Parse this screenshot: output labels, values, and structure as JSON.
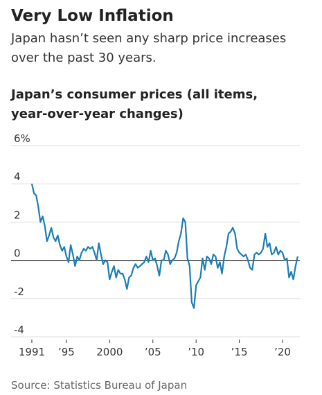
{
  "chart_data": {
    "type": "line",
    "title": "Very Low Inflation",
    "subtitle": "Japan hasn’t seen any sharp price increases over the past 30 years.",
    "chart_title": "Japan’s consumer prices (all items, year-over-year changes)",
    "source": "Source: Statistics Bureau of Japan",
    "color": "#1b7db5",
    "grid": true,
    "xlim": [
      1988.6,
      2022.0
    ],
    "xticks": [
      1991,
      {
        "value": 1995,
        "label": "’95"
      },
      2000,
      {
        "value": 2005,
        "label": "’05"
      },
      {
        "value": 2010,
        "label": "’10"
      },
      {
        "value": 2015,
        "label": "’15"
      },
      {
        "value": 2020,
        "label": "’20"
      }
    ],
    "ylim": [
      -4,
      6
    ],
    "yticks": [
      -4,
      -2,
      0,
      2,
      4,
      {
        "value": 6,
        "label": "6%"
      }
    ],
    "x": [
      1991.0,
      1991.25,
      1991.5,
      1991.75,
      1992.0,
      1992.25,
      1992.5,
      1992.75,
      1993.0,
      1993.25,
      1993.5,
      1993.75,
      1994.0,
      1994.25,
      1994.5,
      1994.75,
      1995.0,
      1995.25,
      1995.5,
      1995.75,
      1996.0,
      1996.25,
      1996.5,
      1996.75,
      1997.0,
      1997.25,
      1997.5,
      1997.75,
      1998.0,
      1998.25,
      1998.5,
      1998.75,
      1999.0,
      1999.25,
      1999.5,
      1999.75,
      2000.0,
      2000.25,
      2000.5,
      2000.75,
      2001.0,
      2001.25,
      2001.5,
      2001.75,
      2002.0,
      2002.25,
      2002.5,
      2002.75,
      2003.0,
      2003.25,
      2003.5,
      2003.75,
      2004.0,
      2004.25,
      2004.5,
      2004.75,
      2005.0,
      2005.25,
      2005.5,
      2005.75,
      2006.0,
      2006.25,
      2006.5,
      2006.75,
      2007.0,
      2007.25,
      2007.5,
      2007.75,
      2008.0,
      2008.25,
      2008.5,
      2008.75,
      2009.0,
      2009.25,
      2009.5,
      2009.75,
      2010.0,
      2010.25,
      2010.5,
      2010.75,
      2011.0,
      2011.25,
      2011.5,
      2011.75,
      2012.0,
      2012.25,
      2012.5,
      2012.75,
      2013.0,
      2013.25,
      2013.5,
      2013.75,
      2014.0,
      2014.25,
      2014.5,
      2014.75,
      2015.0,
      2015.25,
      2015.5,
      2015.75,
      2016.0,
      2016.25,
      2016.5,
      2016.75,
      2017.0,
      2017.25,
      2017.5,
      2017.75,
      2018.0,
      2018.25,
      2018.5,
      2018.75,
      2019.0,
      2019.25,
      2019.5,
      2019.75,
      2020.0,
      2020.25,
      2020.5,
      2020.75,
      2021.0,
      2021.25,
      2021.5,
      2021.75
    ],
    "values": [
      4.0,
      3.5,
      3.4,
      2.8,
      2.0,
      2.3,
      1.8,
      1.0,
      1.3,
      1.7,
      1.2,
      1.0,
      1.3,
      0.8,
      0.5,
      0.7,
      0.2,
      -0.1,
      0.8,
      0.3,
      -0.3,
      0.2,
      0.0,
      0.4,
      0.6,
      0.5,
      0.7,
      0.6,
      0.7,
      0.4,
      0.0,
      0.9,
      0.3,
      -0.2,
      0.0,
      -0.1,
      -1.0,
      -0.6,
      -0.3,
      -0.9,
      -0.5,
      -0.7,
      -0.7,
      -1.0,
      -1.5,
      -0.9,
      -0.8,
      -0.4,
      -0.2,
      -0.4,
      -0.3,
      -0.2,
      -0.1,
      0.2,
      -0.1,
      0.5,
      0.0,
      0.1,
      -0.3,
      -0.8,
      0.0,
      0.0,
      0.5,
      0.3,
      -0.2,
      0.0,
      0.1,
      0.4,
      1.0,
      1.4,
      2.2,
      2.0,
      0.1,
      -0.3,
      -2.2,
      -2.5,
      -1.3,
      -1.1,
      -0.9,
      0.1,
      -0.5,
      0.2,
      0.1,
      -0.2,
      0.3,
      0.2,
      -0.4,
      -0.1,
      -0.7,
      0.2,
      0.7,
      1.4,
      1.5,
      1.7,
      1.4,
      0.6,
      0.4,
      0.3,
      0.2,
      0.3,
      0.0,
      -0.4,
      -0.5,
      0.3,
      0.4,
      0.3,
      0.4,
      0.6,
      1.4,
      0.7,
      0.9,
      0.3,
      0.4,
      0.7,
      0.3,
      0.5,
      0.4,
      0.0,
      0.1,
      -0.9,
      -0.6,
      -1.0,
      -0.3,
      0.2
    ]
  }
}
